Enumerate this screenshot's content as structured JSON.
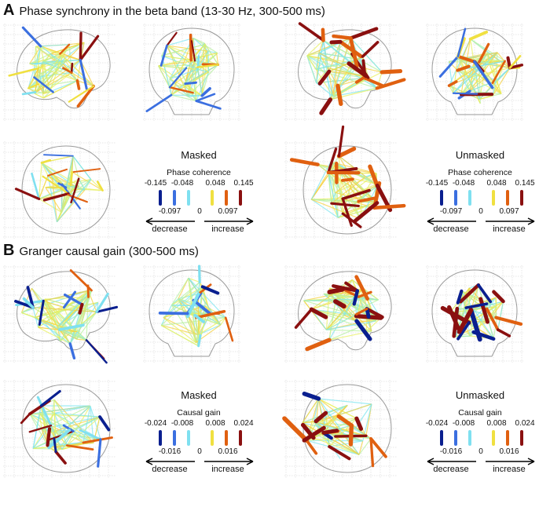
{
  "sectionA": {
    "letter": "A",
    "title": "Phase synchrony in the beta band (13-30 Hz, 300-500 ms)"
  },
  "sectionB": {
    "letter": "B",
    "title": "Granger causal gain (300-500 ms)"
  },
  "legends": [
    {
      "id": "a-masked",
      "title": "Masked",
      "subtitle": "Phase coherence",
      "top_ticks": [
        "-0.145",
        "-0.048",
        "0.048",
        "0.145"
      ],
      "bottom_ticks": [
        "-0.097",
        "0",
        "0.097"
      ],
      "decrease": "decrease",
      "increase": "increase"
    },
    {
      "id": "a-unmasked",
      "title": "Unmasked",
      "subtitle": "Phase coherence",
      "top_ticks": [
        "-0.145",
        "-0.048",
        "0.048",
        "0.145"
      ],
      "bottom_ticks": [
        "-0.097",
        "0",
        "0.097"
      ],
      "decrease": "decrease",
      "increase": "increase"
    },
    {
      "id": "b-masked",
      "title": "Masked",
      "subtitle": "Causal gain",
      "top_ticks": [
        "-0.024",
        "-0.008",
        "0.008",
        "0.024"
      ],
      "bottom_ticks": [
        "-0.016",
        "0",
        "0.016"
      ],
      "decrease": "decrease",
      "increase": "increase"
    },
    {
      "id": "b-unmasked",
      "title": "Unmasked",
      "subtitle": "Causal gain",
      "top_ticks": [
        "-0.024",
        "-0.008",
        "0.008",
        "0.024"
      ],
      "bottom_ticks": [
        "-0.016",
        "0",
        "0.016"
      ],
      "decrease": "decrease",
      "increase": "increase"
    }
  ],
  "colors": {
    "scale": [
      "#0a1f8f",
      "#3b6fe0",
      "#7fe0f0",
      "#ffffff",
      "#f0e040",
      "#e06010",
      "#8a1010"
    ],
    "connection_light": [
      "#7fe6f0",
      "#b8f0a0",
      "#e8f060",
      "#f5d040"
    ],
    "brain_outline": "#9a9a9a",
    "grid": "#cfcfcf"
  }
}
